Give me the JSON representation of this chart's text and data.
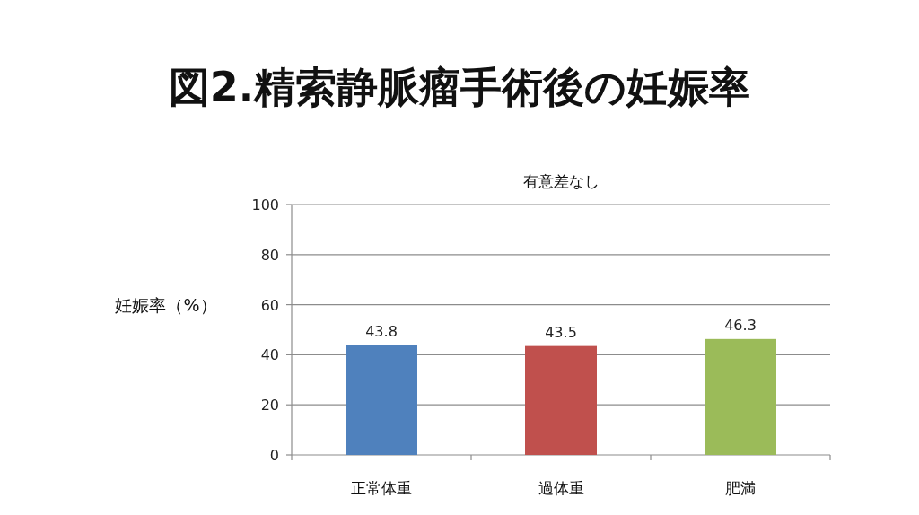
{
  "chart_data": {
    "type": "bar",
    "title": "図2.精索静脈瘤手術後の妊娠率",
    "subtitle": "有意差なし",
    "ylabel": "妊娠率（%）",
    "categories": [
      "正常体重",
      "過体重",
      "肥満"
    ],
    "values": [
      43.8,
      43.5,
      46.3
    ],
    "colors": [
      "#4f81bd",
      "#c0504d",
      "#9bbb59"
    ],
    "ylim": [
      0,
      100
    ],
    "yticks": [
      0,
      20,
      40,
      60,
      80,
      100
    ],
    "grid": "y",
    "data_labels": true
  }
}
